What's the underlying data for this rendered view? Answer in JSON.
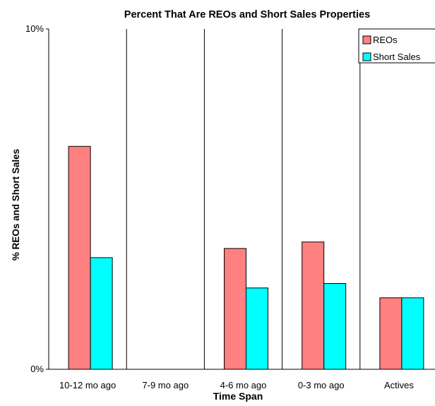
{
  "chart_data": {
    "type": "bar",
    "title": "Percent That Are REOs and Short Sales Properties",
    "xlabel": "Time Span",
    "ylabel": "% REOs and Short Sales",
    "categories": [
      "10-12 mo ago",
      "7-9 mo ago",
      "4-6 mo ago",
      "0-3 mo ago",
      "Actives"
    ],
    "series": [
      {
        "name": "REOs",
        "color": "#FF8080",
        "values": [
          6.55,
          0,
          3.55,
          3.74,
          2.1
        ]
      },
      {
        "name": "Short Sales",
        "color": "#00FFFF",
        "values": [
          3.28,
          0,
          2.39,
          2.52,
          2.1
        ]
      }
    ],
    "ylim": [
      0,
      10
    ],
    "yticks": [
      "0%",
      "10%"
    ],
    "ytick_values": [
      0,
      10
    ],
    "grid": false,
    "category_separators": true,
    "legend_position": "top-right"
  }
}
